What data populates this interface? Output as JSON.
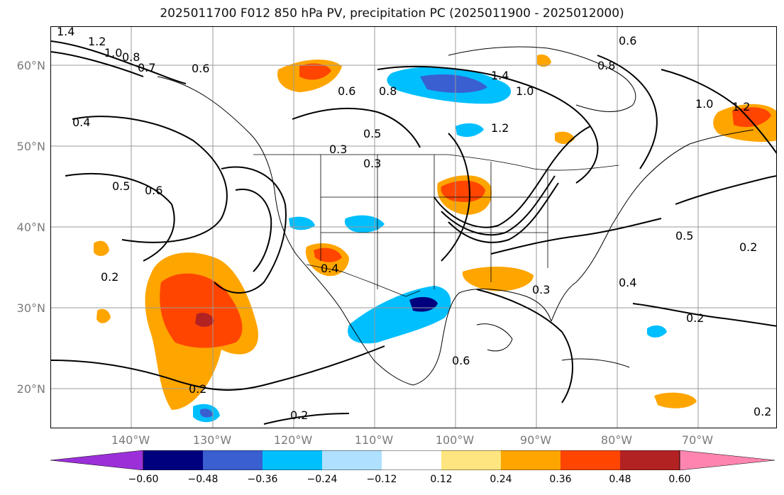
{
  "title": "2025011700 F012 850 hPa PV, precipitation PC (2025011900 - 2025012000)",
  "lat_labels": [
    "60°N",
    "50°N",
    "40°N",
    "30°N",
    "20°N"
  ],
  "lon_labels": [
    "140°W",
    "130°W",
    "120°W",
    "110°W",
    "100°W",
    "90°W",
    "80°W",
    "70°W"
  ],
  "contour_labels": [
    "1.4",
    "1.2",
    "1.0",
    "0.8",
    "0.7",
    "0.6",
    "0.4",
    "0.5",
    "0.6",
    "0.3",
    "0.3",
    "0.2",
    "0.2",
    "0.2",
    "0.2",
    "0.2",
    "0.3",
    "0.4",
    "0.5",
    "0.6",
    "0.8",
    "1.0",
    "1.2",
    "1.4",
    "0.6",
    "0.8",
    "1.0",
    "1.2",
    "0.5",
    "0.2",
    "0.4",
    "0.6"
  ],
  "colorbar": {
    "ticks": [
      "−0.60",
      "−0.48",
      "−0.36",
      "−0.24",
      "−0.12",
      "0.12",
      "0.24",
      "0.36",
      "0.48",
      "0.60"
    ],
    "colors": [
      "#9b30d9",
      "#00007f",
      "#3a5fd0",
      "#00bfff",
      "#b0e0ff",
      "#ffffff",
      "#ffe57f",
      "#ffa500",
      "#ff4500",
      "#b22222",
      "#ff85b0"
    ]
  }
}
